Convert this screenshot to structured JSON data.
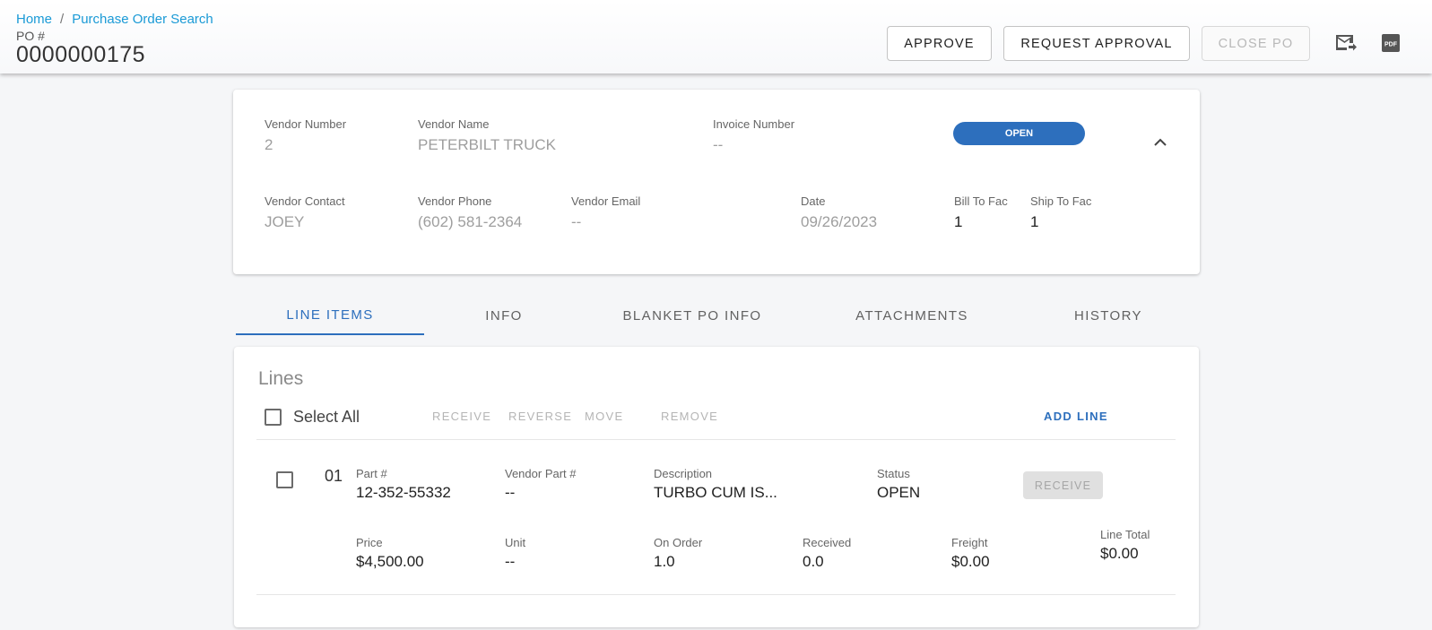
{
  "header": {
    "breadcrumb": {
      "home": "Home",
      "separator": "/",
      "current": "Purchase Order Search"
    },
    "po_label": "PO #",
    "po_number": "0000000175",
    "buttons": {
      "approve": "APPROVE",
      "request_approval": "REQUEST APPROVAL",
      "close_po": "CLOSE PO"
    },
    "icons": [
      "email-forward-icon",
      "pdf-icon"
    ]
  },
  "vendor": {
    "vendor_number": {
      "label": "Vendor Number",
      "value": "2"
    },
    "vendor_name": {
      "label": "Vendor Name",
      "value": "PETERBILT TRUCK"
    },
    "invoice_number": {
      "label": "Invoice Number",
      "value": "--"
    },
    "status": "OPEN",
    "vendor_contact": {
      "label": "Vendor Contact",
      "value": "JOEY"
    },
    "vendor_phone": {
      "label": "Vendor Phone",
      "value": "(602) 581-2364"
    },
    "vendor_email": {
      "label": "Vendor Email",
      "value": "--"
    },
    "date": {
      "label": "Date",
      "value": "09/26/2023"
    },
    "bill_to_fac": {
      "label": "Bill To Fac",
      "value": "1"
    },
    "ship_to_fac": {
      "label": "Ship To Fac",
      "value": "1"
    }
  },
  "tabs": [
    "LINE ITEMS",
    "INFO",
    "BLANKET PO INFO",
    "ATTACHMENTS",
    "HISTORY"
  ],
  "lines": {
    "title": "Lines",
    "select_all": "Select All",
    "actions": {
      "receive": "RECEIVE",
      "reverse": "REVERSE",
      "move": "MOVE",
      "remove": "REMOVE",
      "add_line": "ADD LINE"
    },
    "items": [
      {
        "line_no": "01",
        "part": {
          "label": "Part #",
          "value": "12-352-55332"
        },
        "vendor_part": {
          "label": "Vendor Part #",
          "value": "--"
        },
        "description": {
          "label": "Description",
          "value": "TURBO CUM IS..."
        },
        "status": {
          "label": "Status",
          "value": "OPEN"
        },
        "receive_label": "RECEIVE",
        "price": {
          "label": "Price",
          "value": "$4,500.00"
        },
        "unit": {
          "label": "Unit",
          "value": "--"
        },
        "on_order": {
          "label": "On Order",
          "value": "1.0"
        },
        "received": {
          "label": "Received",
          "value": "0.0"
        },
        "freight": {
          "label": "Freight",
          "value": "$0.00"
        },
        "line_total": {
          "label": "Line Total",
          "value": "$0.00"
        }
      }
    ]
  },
  "colors": {
    "accent": "#2d6fbd",
    "link": "#1a9ad6"
  }
}
